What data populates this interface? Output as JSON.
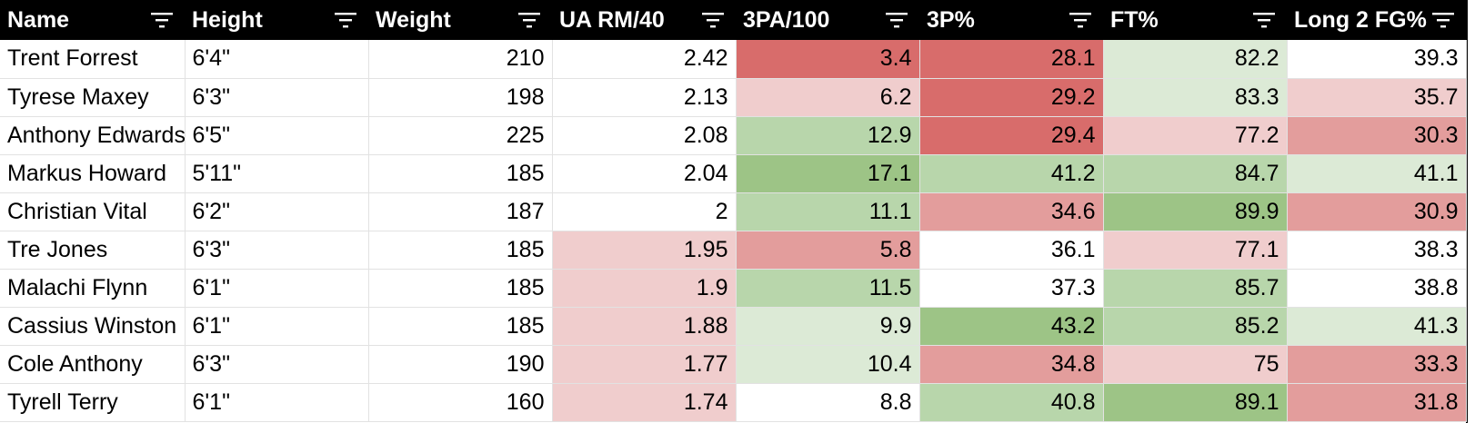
{
  "columns": [
    {
      "label": "Name",
      "filter_icon": "filter-icon"
    },
    {
      "label": "Height",
      "filter_icon": "filter-icon"
    },
    {
      "label": "Weight",
      "filter_icon": "filter-icon"
    },
    {
      "label": "UA RM/40",
      "filter_icon": "filter-icon"
    },
    {
      "label": "3PA/100",
      "filter_icon": "filter-icon"
    },
    {
      "label": "3P%",
      "filter_icon": "filter-icon"
    },
    {
      "label": "FT%",
      "filter_icon": "filter-icon"
    },
    {
      "label": "Long 2 FG%",
      "filter_icon": "filter-icon"
    }
  ],
  "colors": {
    "header_bg": "#000000",
    "header_text": "#ffffff",
    "red3": "#d86c6b",
    "red2": "#e39d9c",
    "red1": "#f0cdcd",
    "green1": "#dcead6",
    "green2": "#b8d6ab",
    "green3": "#9dc486",
    "white": "#ffffff"
  },
  "rows": [
    {
      "cells": [
        "Trent Forrest",
        "6'4\"",
        "210",
        "2.42",
        "3.4",
        "28.1",
        "82.2",
        "39.3"
      ],
      "shades": [
        "white",
        "white",
        "white",
        "white",
        "red3",
        "red3",
        "green1",
        "white"
      ]
    },
    {
      "cells": [
        "Tyrese Maxey",
        "6'3\"",
        "198",
        "2.13",
        "6.2",
        "29.2",
        "83.3",
        "35.7"
      ],
      "shades": [
        "white",
        "white",
        "white",
        "white",
        "red1",
        "red3",
        "green1",
        "red1"
      ]
    },
    {
      "cells": [
        "Anthony Edwards",
        "6'5\"",
        "225",
        "2.08",
        "12.9",
        "29.4",
        "77.2",
        "30.3"
      ],
      "shades": [
        "white",
        "white",
        "white",
        "white",
        "green2",
        "red3",
        "red1",
        "red2"
      ]
    },
    {
      "cells": [
        "Markus Howard",
        "5'11\"",
        "185",
        "2.04",
        "17.1",
        "41.2",
        "84.7",
        "41.1"
      ],
      "shades": [
        "white",
        "white",
        "white",
        "white",
        "green3",
        "green2",
        "green2",
        "green1"
      ]
    },
    {
      "cells": [
        "Christian Vital",
        "6'2\"",
        "187",
        "2",
        "11.1",
        "34.6",
        "89.9",
        "30.9"
      ],
      "shades": [
        "white",
        "white",
        "white",
        "white",
        "green2",
        "red2",
        "green3",
        "red2"
      ]
    },
    {
      "cells": [
        "Tre Jones",
        "6'3\"",
        "185",
        "1.95",
        "5.8",
        "36.1",
        "77.1",
        "38.3"
      ],
      "shades": [
        "white",
        "white",
        "white",
        "red1",
        "red2",
        "white",
        "red1",
        "white"
      ]
    },
    {
      "cells": [
        "Malachi Flynn",
        "6'1\"",
        "185",
        "1.9",
        "11.5",
        "37.3",
        "85.7",
        "38.8"
      ],
      "shades": [
        "white",
        "white",
        "white",
        "red1",
        "green2",
        "white",
        "green2",
        "white"
      ]
    },
    {
      "cells": [
        "Cassius Winston",
        "6'1\"",
        "185",
        "1.88",
        "9.9",
        "43.2",
        "85.2",
        "41.3"
      ],
      "shades": [
        "white",
        "white",
        "white",
        "red1",
        "green1",
        "green3",
        "green2",
        "green1"
      ]
    },
    {
      "cells": [
        "Cole Anthony",
        "6'3\"",
        "190",
        "1.77",
        "10.4",
        "34.8",
        "75",
        "33.3"
      ],
      "shades": [
        "white",
        "white",
        "white",
        "red1",
        "green1",
        "red2",
        "red1",
        "red2"
      ]
    },
    {
      "cells": [
        "Tyrell Terry",
        "6'1\"",
        "160",
        "1.74",
        "8.8",
        "40.8",
        "89.1",
        "31.8"
      ],
      "shades": [
        "white",
        "white",
        "white",
        "red1",
        "white",
        "green2",
        "green3",
        "red2"
      ]
    }
  ]
}
